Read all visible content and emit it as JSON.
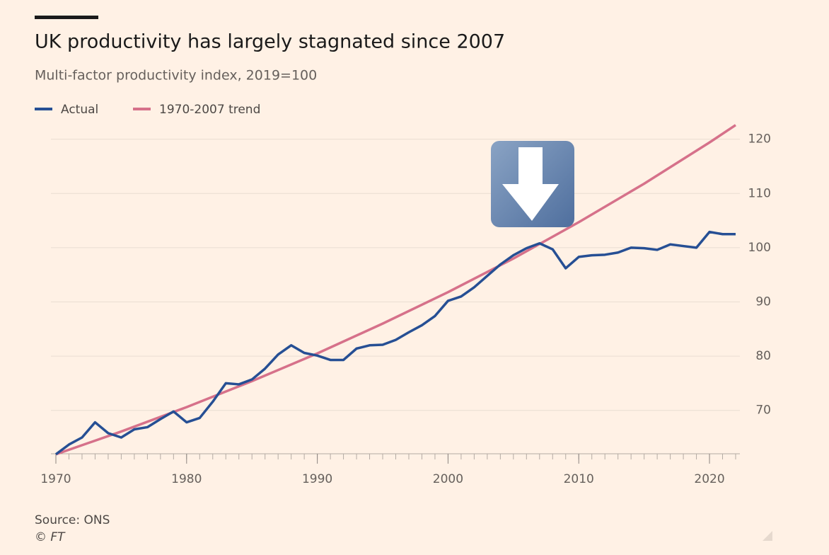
{
  "chart_data": {
    "type": "line",
    "title": "UK productivity has largely stagnated since 2007",
    "subtitle": "Multi-factor productivity index, 2019=100",
    "source": "Source: ONS",
    "credit": "© FT",
    "xlim": [
      1970,
      2022
    ],
    "xticks": [
      1970,
      1980,
      1990,
      2000,
      2010,
      2020
    ],
    "ylim": [
      62,
      124
    ],
    "yticks": [
      70,
      80,
      90,
      100,
      110,
      120
    ],
    "grid": true,
    "series": [
      {
        "name": "Actual",
        "color": "#264f94",
        "x": [
          1970,
          1971,
          1972,
          1973,
          1974,
          1975,
          1976,
          1977,
          1978,
          1979,
          1980,
          1981,
          1982,
          1983,
          1984,
          1985,
          1986,
          1987,
          1988,
          1989,
          1990,
          1991,
          1992,
          1993,
          1994,
          1995,
          1996,
          1997,
          1998,
          1999,
          2000,
          2001,
          2002,
          2003,
          2004,
          2005,
          2006,
          2007,
          2008,
          2009,
          2010,
          2011,
          2012,
          2013,
          2014,
          2015,
          2016,
          2017,
          2018,
          2019,
          2020,
          2021,
          2022
        ],
        "values": [
          61.9,
          63.7,
          65.0,
          67.8,
          65.8,
          65.0,
          66.5,
          66.9,
          68.4,
          69.8,
          67.8,
          68.6,
          71.6,
          75.0,
          74.8,
          75.7,
          77.7,
          80.3,
          82.0,
          80.6,
          80.1,
          79.3,
          79.3,
          81.4,
          82.0,
          82.1,
          83.0,
          84.4,
          85.7,
          87.4,
          90.2,
          91.0,
          92.7,
          94.8,
          96.9,
          98.6,
          99.9,
          100.8,
          99.7,
          96.2,
          98.3,
          98.6,
          98.7,
          99.1,
          100.0,
          99.9,
          99.6,
          100.6,
          100.3,
          100,
          102.9,
          102.5,
          102.5
        ]
      },
      {
        "name": "1970-2007 trend",
        "color": "#d6718a",
        "x": [
          1970,
          1975,
          1980,
          1985,
          1990,
          1995,
          2000,
          2005,
          2010,
          2015,
          2020,
          2022
        ],
        "values": [
          61.9,
          66.1,
          70.6,
          75.4,
          80.5,
          86.0,
          91.8,
          98.0,
          104.7,
          111.8,
          119.4,
          122.6
        ]
      }
    ]
  }
}
